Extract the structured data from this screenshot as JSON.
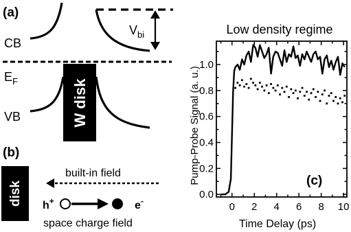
{
  "figure": {
    "panel_a": {
      "label": "(a)",
      "cb_label": "CB",
      "vb_label": "VB",
      "ef_label": "E",
      "ef_subscript": "F",
      "vbi_label": "V",
      "vbi_subscript": "bi",
      "disk_label": "W disk"
    },
    "panel_b": {
      "label": "(b)",
      "disk_label": "disk",
      "builtin_field": "built-in field",
      "hole_symbol": "h",
      "hole_charge": "+",
      "electron_symbol": "e",
      "electron_charge": "-",
      "space_charge_field": "space charge field"
    },
    "panel_c": {
      "label": "(c)"
    }
  },
  "chart_data": {
    "type": "line",
    "title": "Low density regime",
    "xlabel": "Time Delay (ps)",
    "ylabel": "Pump-Probe Signal (a. u.)",
    "xlim": [
      -1.4,
      10.3
    ],
    "ylim": [
      -0.02,
      1.18
    ],
    "xticks": [
      0,
      2,
      4,
      6,
      8,
      10
    ],
    "yticks": [
      0.0,
      0.2,
      0.4,
      0.6,
      0.8,
      1.0
    ],
    "ytick_labels": [
      "0.0",
      "0.2",
      "0.4",
      "0.6",
      "0.8",
      "1.0"
    ],
    "grid": false,
    "series": [
      {
        "style": "solid",
        "x": [
          -1.0,
          -0.6,
          -0.3,
          -0.1,
          0.0,
          0.1,
          0.2,
          0.3,
          0.5,
          0.7,
          0.9,
          1.1,
          1.3,
          1.5,
          1.7,
          1.9,
          2.1,
          2.3,
          2.5,
          2.7,
          2.9,
          3.1,
          3.3,
          3.5,
          3.7,
          3.9,
          4.1,
          4.3,
          4.5,
          4.7,
          4.9,
          5.1,
          5.3,
          5.5,
          5.7,
          5.9,
          6.1,
          6.3,
          6.5,
          6.7,
          6.9,
          7.1,
          7.3,
          7.5,
          7.7,
          7.9,
          8.1,
          8.3,
          8.5,
          8.7,
          8.9,
          9.1,
          9.3,
          9.5,
          9.7,
          9.9,
          10.1
        ],
        "y": [
          0.0,
          0.0,
          0.02,
          0.12,
          0.45,
          0.8,
          0.95,
          0.98,
          1.0,
          0.96,
          1.04,
          1.0,
          1.07,
          1.1,
          1.02,
          1.15,
          1.13,
          1.06,
          1.15,
          1.1,
          1.05,
          1.08,
          1.13,
          0.93,
          1.06,
          1.1,
          1.09,
          1.04,
          0.99,
          1.11,
          1.02,
          1.08,
          1.06,
          1.14,
          1.05,
          1.07,
          0.99,
          1.08,
          1.04,
          1.1,
          1.06,
          1.02,
          1.08,
          1.1,
          1.04,
          1.06,
          0.93,
          1.04,
          1.07,
          0.98,
          1.03,
          0.96,
          1.02,
          1.06,
          0.92,
          1.01,
          0.98
        ]
      },
      {
        "style": "dotted",
        "x": [
          0.3,
          0.5,
          0.7,
          0.9,
          1.1,
          1.3,
          1.5,
          1.7,
          1.9,
          2.1,
          2.3,
          2.5,
          2.7,
          2.9,
          3.1,
          3.3,
          3.5,
          3.7,
          3.9,
          4.1,
          4.3,
          4.5,
          4.7,
          4.9,
          5.1,
          5.3,
          5.5,
          5.7,
          5.9,
          6.1,
          6.3,
          6.5,
          6.7,
          6.9,
          7.1,
          7.3,
          7.5,
          7.7,
          7.9,
          8.1,
          8.3,
          8.5,
          8.7,
          8.9,
          9.1,
          9.3,
          9.5,
          9.7,
          9.9,
          10.1
        ],
        "y": [
          0.82,
          0.86,
          0.84,
          0.88,
          0.83,
          0.85,
          0.82,
          0.89,
          0.86,
          0.84,
          0.81,
          0.86,
          0.83,
          0.8,
          0.84,
          0.78,
          0.85,
          0.82,
          0.8,
          0.84,
          0.77,
          0.82,
          0.79,
          0.83,
          0.75,
          0.81,
          0.78,
          0.8,
          0.74,
          0.79,
          0.82,
          0.76,
          0.79,
          0.73,
          0.78,
          0.81,
          0.75,
          0.79,
          0.72,
          0.77,
          0.8,
          0.7,
          0.76,
          0.78,
          0.72,
          0.75,
          0.7,
          0.74,
          0.71,
          0.76
        ]
      }
    ]
  }
}
